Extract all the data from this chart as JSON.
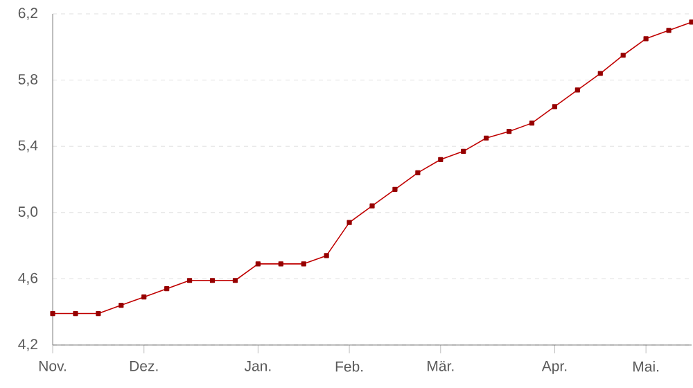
{
  "chart_data": {
    "type": "line",
    "categories": [
      "Nov.",
      null,
      null,
      null,
      "Dez.",
      null,
      null,
      null,
      null,
      "Jan.",
      null,
      null,
      null,
      "Feb.",
      null,
      null,
      null,
      "Mär.",
      null,
      null,
      null,
      null,
      "Apr.",
      null,
      null,
      null,
      "Mai.",
      null,
      null
    ],
    "series": [
      {
        "color": "#c00000",
        "values": [
          4.39,
          4.39,
          4.39,
          4.44,
          4.49,
          4.54,
          4.59,
          4.59,
          4.59,
          4.69,
          4.69,
          4.69,
          4.74,
          4.94,
          5.04,
          5.14,
          5.24,
          5.32,
          5.37,
          5.45,
          5.49,
          5.54,
          5.64,
          5.74,
          5.84,
          5.95,
          6.05,
          6.1,
          6.15
        ]
      }
    ],
    "ylim": [
      4.2,
      6.2
    ],
    "yticks": [
      {
        "value": 4.2,
        "label": "4,2"
      },
      {
        "value": 4.6,
        "label": "4,6"
      },
      {
        "value": 5.0,
        "label": "5,0"
      },
      {
        "value": 5.4,
        "label": "5,4"
      },
      {
        "value": 5.8,
        "label": "5,8"
      },
      {
        "value": 6.2,
        "label": "6,2"
      }
    ],
    "grid": "y",
    "marker": "square",
    "line_style": "solid"
  }
}
